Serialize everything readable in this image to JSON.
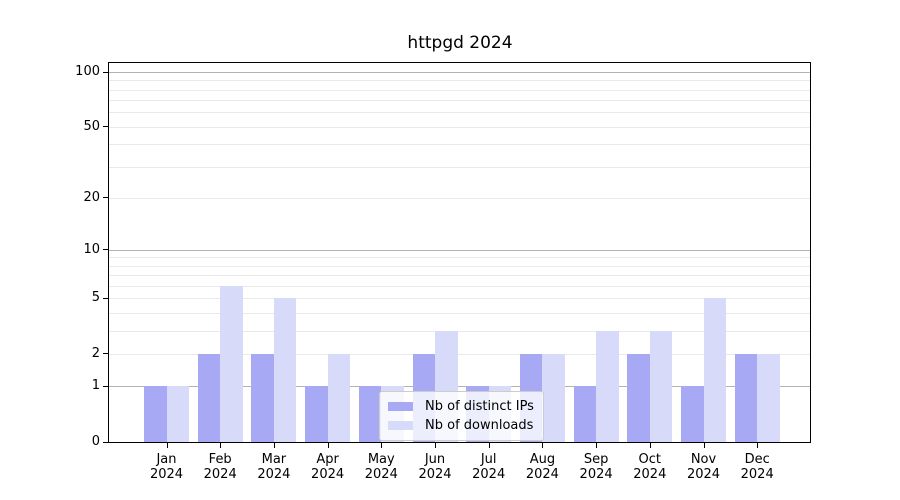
{
  "title": "httpgd 2024",
  "colors": {
    "bar_ips": "#a7a9f4",
    "bar_downloads": "#d8daf9",
    "grid_major": "#b3b3b3",
    "grid_minor": "#e9e9e9",
    "axis": "#000000",
    "background": "#ffffff",
    "legend_border": "#cccccc"
  },
  "legend": {
    "labels": [
      "Nb of distinct IPs",
      "Nb of downloads"
    ]
  },
  "y_axis": {
    "tick_labels": [
      "0",
      "1",
      "2",
      "5",
      "10",
      "20",
      "50",
      "100"
    ]
  },
  "x_axis": {
    "tick_labels": [
      [
        "Jan",
        "2024"
      ],
      [
        "Feb",
        "2024"
      ],
      [
        "Mar",
        "2024"
      ],
      [
        "Apr",
        "2024"
      ],
      [
        "May",
        "2024"
      ],
      [
        "Jun",
        "2024"
      ],
      [
        "Jul",
        "2024"
      ],
      [
        "Aug",
        "2024"
      ],
      [
        "Sep",
        "2024"
      ],
      [
        "Oct",
        "2024"
      ],
      [
        "Nov",
        "2024"
      ],
      [
        "Dec",
        "2024"
      ]
    ]
  },
  "chart_data": {
    "type": "bar",
    "title": "httpgd 2024",
    "categories": [
      "Jan 2024",
      "Feb 2024",
      "Mar 2024",
      "Apr 2024",
      "May 2024",
      "Jun 2024",
      "Jul 2024",
      "Aug 2024",
      "Sep 2024",
      "Oct 2024",
      "Nov 2024",
      "Dec 2024"
    ],
    "series": [
      {
        "name": "Nb of distinct IPs",
        "color": "#a7a9f4",
        "values": [
          1,
          2,
          2,
          1,
          1,
          2,
          1,
          2,
          1,
          2,
          1,
          2
        ]
      },
      {
        "name": "Nb of downloads",
        "color": "#d8daf9",
        "values": [
          1,
          6,
          5,
          2,
          1,
          3,
          1,
          2,
          3,
          3,
          5,
          2
        ]
      }
    ],
    "xlabel": "",
    "ylabel": "",
    "yscale": "log1p",
    "ylim": [
      0,
      112
    ],
    "yticks": [
      0,
      1,
      2,
      5,
      10,
      20,
      50,
      100
    ],
    "major_gridlines": [
      1,
      10,
      100
    ],
    "minor_gridlines": [
      2,
      3,
      4,
      5,
      6,
      7,
      8,
      9,
      20,
      30,
      40,
      50,
      60,
      70,
      80,
      90
    ],
    "grid": true,
    "legend_position": "inside lower-center"
  }
}
